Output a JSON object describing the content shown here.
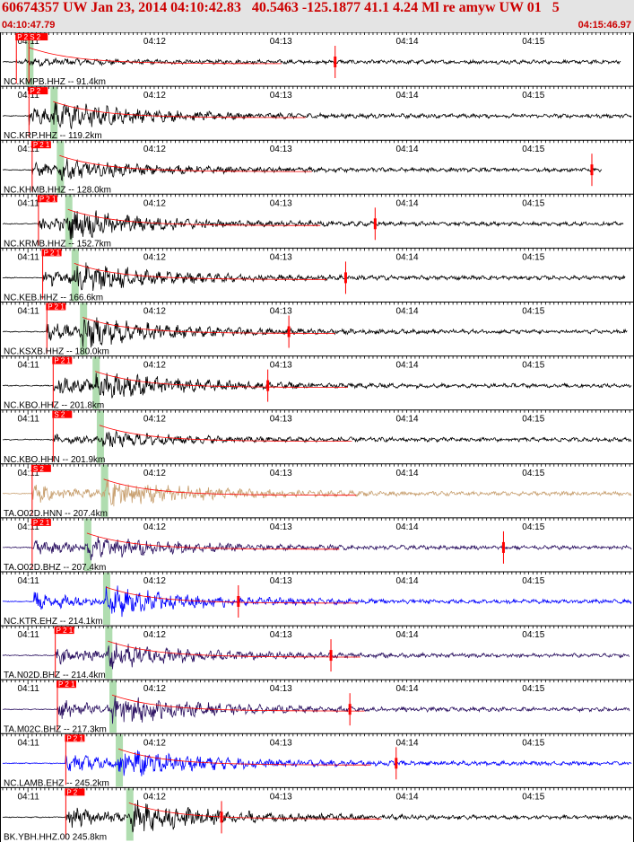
{
  "header": {
    "title": "60674357 UW Jan 23, 2014 04:10:42.83   40.5463 -125.1877 41.1 4.24 Ml re amyw UW 01   5",
    "start_time": "04:10:47.79",
    "end_time": "04:15:46.97"
  },
  "chart_data": {
    "type": "line",
    "title": "60674357 UW Jan 23, 2014 04:10:42.83   40.5463 -125.1877 41.1 4.24 Ml re amyw UW 01   5",
    "x_unit": "seconds after 04:10:47.79",
    "xlim": [
      0,
      299.18
    ],
    "time_labels": [
      "04:11",
      "04:12",
      "04:13",
      "04:14",
      "04:15"
    ],
    "time_label_seconds": [
      12.21,
      72.21,
      132.21,
      192.21,
      252.21
    ],
    "colors": {
      "trace_black": "#000000",
      "trace_tan": "#c8a070",
      "trace_indigo": "#2a1060",
      "trace_blue": "#0000ff",
      "pick": "#ff0000",
      "window": "#8fce8f",
      "header_bg": "#e4e4e4"
    },
    "series": [
      {
        "name": "NC.KMPB.HHZ -- 91.4km",
        "color": "#000000",
        "p": 6.5,
        "s": 12.5,
        "amp": 0.15,
        "end": 294,
        "pick_labels": [
          "P 2",
          "S 2"
        ],
        "mark": 158
      },
      {
        "name": "NC.KRP.HHZ -- 119.2km",
        "color": "#000000",
        "p": 12.5,
        "s": 24,
        "amp": 0.9,
        "end": 299,
        "pick_labels": [
          "P 2"
        ],
        "mark": null
      },
      {
        "name": "NC.KHMB.HHZ -- 128.0km",
        "color": "#000000",
        "p": 14,
        "s": 27,
        "amp": 0.6,
        "end": 285,
        "pick_labels": [
          "P 2 1"
        ],
        "mark": 280
      },
      {
        "name": "NC.KRMB.HHZ -- 152.7km",
        "color": "#000000",
        "p": 17,
        "s": 31,
        "amp": 0.9,
        "end": 295,
        "pick_labels": [
          "P 2 1"
        ],
        "mark": 177
      },
      {
        "name": "NC.KEB.HHZ -- 166.6km",
        "color": "#000000",
        "p": 19,
        "s": 34,
        "amp": 0.9,
        "end": 296,
        "pick_labels": [
          "P 2 1"
        ],
        "mark": 163
      },
      {
        "name": "NC.KSXB.HHZ -- 180.0km",
        "color": "#000000",
        "p": 21,
        "s": 38,
        "amp": 0.9,
        "end": 297,
        "pick_labels": [
          "P 2 1"
        ],
        "mark": 136
      },
      {
        "name": "NC.KBO.HHZ -- 201.8km",
        "color": "#000000",
        "p": 24,
        "s": 44,
        "amp": 0.9,
        "end": 299,
        "pick_labels": [
          "P 2 1"
        ],
        "mark": 126
      },
      {
        "name": "NC.KBO.HHN -- 201.9km",
        "color": "#000000",
        "p": 24,
        "s": 46,
        "amp": 0.45,
        "end": 299,
        "pick_labels": [
          "S 2"
        ],
        "mark": null
      },
      {
        "name": "TA.O02D.HNN -- 207.4km",
        "color": "#c8a070",
        "p": 14,
        "s": 48,
        "amp": 0.9,
        "end": 299,
        "pick_labels": [
          "S 2"
        ],
        "mark": null
      },
      {
        "name": "TA.O02D.BHZ -- 207.4km",
        "color": "#2a1060",
        "p": 14,
        "s": 40,
        "amp": 0.7,
        "end": 299,
        "pick_labels": [
          "P 2 1"
        ],
        "mark": 238
      },
      {
        "name": "NC.KTR.EHZ -- 214.1km",
        "color": "#0000ff",
        "p": 15,
        "s": 49,
        "amp": 0.9,
        "end": 299,
        "pick_labels": [],
        "mark": 112
      },
      {
        "name": "TA.N02D.BHZ -- 214.4km",
        "color": "#2a1060",
        "p": 25,
        "s": 50,
        "amp": 0.8,
        "end": 298,
        "pick_labels": [
          "P 2 1"
        ],
        "mark": 156
      },
      {
        "name": "TA.M02C.BHZ -- 217.3km",
        "color": "#2a1060",
        "p": 26,
        "s": 52,
        "amp": 0.9,
        "end": 298,
        "pick_labels": [
          "P 2 1"
        ],
        "mark": 165
      },
      {
        "name": "NC.LAMB.EHZ -- 245.2km",
        "color": "#0000ff",
        "p": 30,
        "s": 55,
        "amp": 0.9,
        "end": 299,
        "pick_labels": [
          "P 2 1"
        ],
        "mark": 187
      },
      {
        "name": "BK.YBH.HHZ.00 245.8km",
        "color": "#000000",
        "p": 30,
        "s": 60,
        "amp": 1.0,
        "end": 299,
        "pick_labels": [
          "P 2"
        ],
        "mark": 104
      }
    ]
  }
}
